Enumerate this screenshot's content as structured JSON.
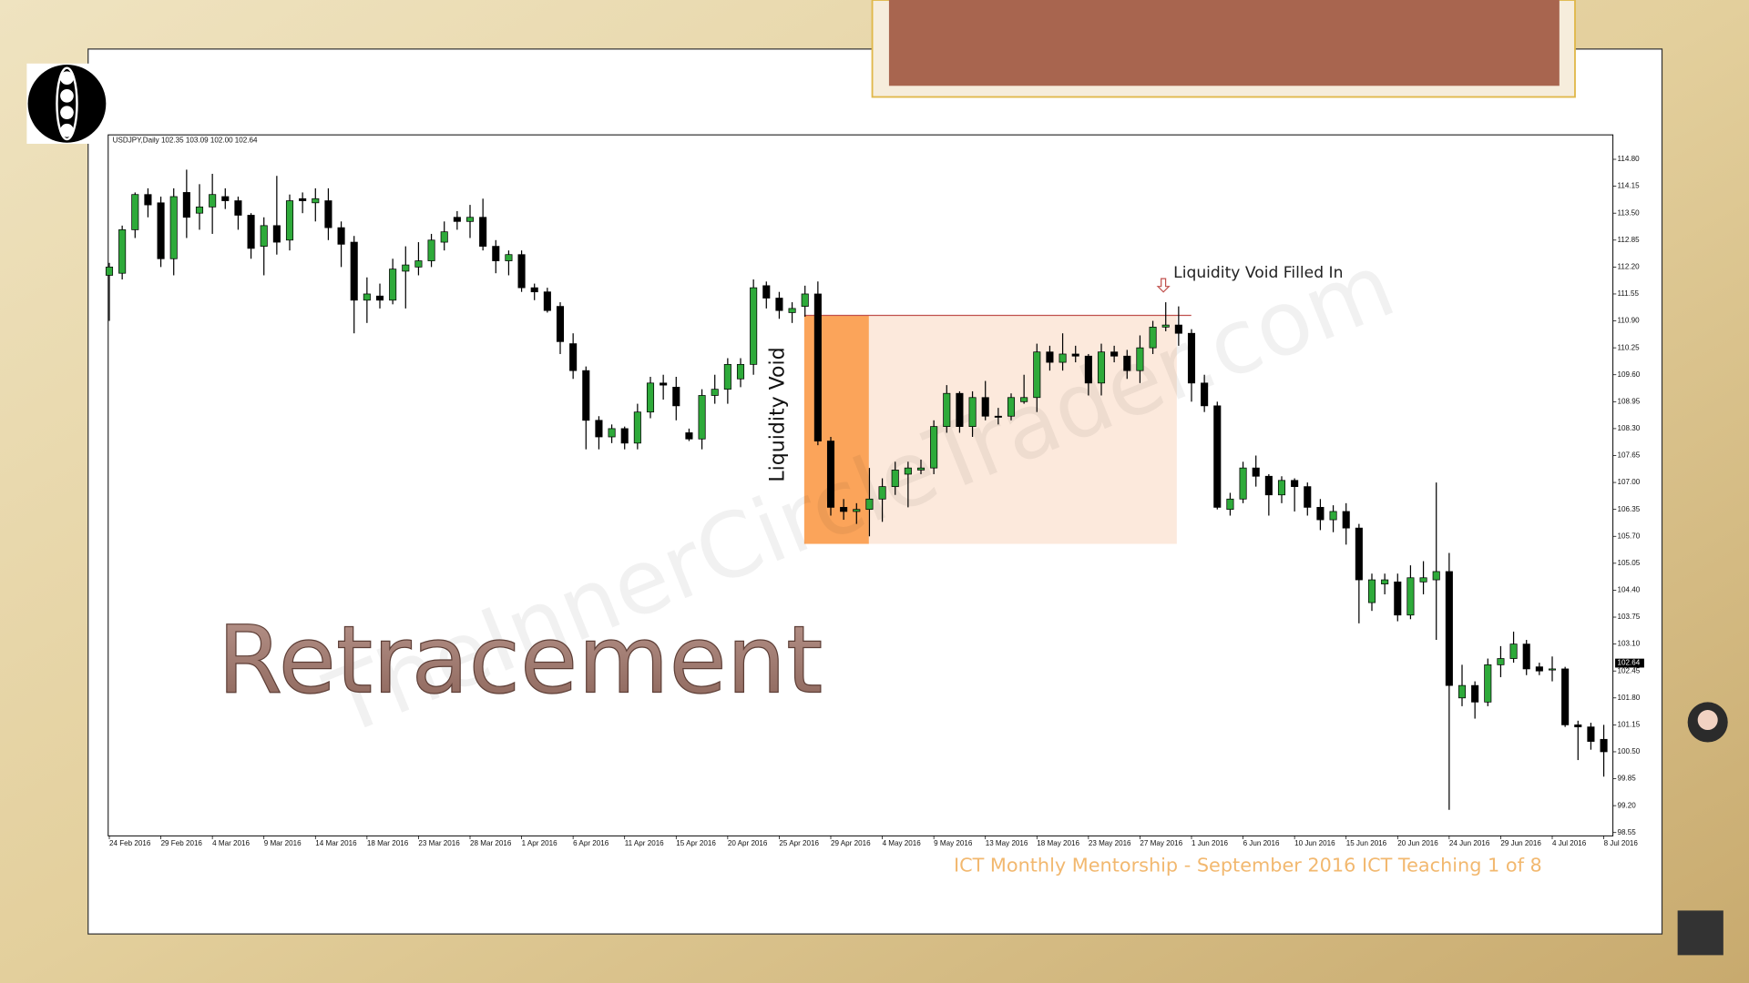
{
  "chart_data": {
    "type": "candlestick",
    "header": "USDJPY,Daily  102.35 103.09 102.00 102.64",
    "title": "Retracement",
    "annotations": [
      "Liquidity Void",
      "Liquidity Void Filled In"
    ],
    "watermark": "TheInnerCircleTrader.com",
    "footer": "ICT Monthly Mentorship - September 2016 ICT Teaching 1 of 8",
    "last_price": 102.64,
    "up_color": "#2eaa3a",
    "down_color": "#000000",
    "categories": [
      "24 Feb 2016",
      null,
      null,
      null,
      "29 Feb 2016",
      null,
      null,
      null,
      "4 Mar 2016",
      null,
      null,
      null,
      "9 Mar 2016",
      null,
      null,
      null,
      "14 Mar 2016",
      null,
      null,
      null,
      "18 Mar 2016",
      null,
      null,
      null,
      "23 Mar 2016",
      null,
      null,
      null,
      "28 Mar 2016",
      null,
      null,
      null,
      "1 Apr 2016",
      null,
      null,
      null,
      "6 Apr 2016",
      null,
      null,
      null,
      "11 Apr 2016",
      null,
      null,
      null,
      "15 Apr 2016",
      null,
      null,
      null,
      "20 Apr 2016",
      null,
      null,
      null,
      "25 Apr 2016",
      null,
      null,
      null,
      "29 Apr 2016",
      null,
      null,
      null,
      "4 May 2016",
      null,
      null,
      null,
      "9 May 2016",
      null,
      null,
      null,
      "13 May 2016",
      null,
      null,
      null,
      "18 May 2016",
      null,
      null,
      null,
      "23 May 2016",
      null,
      null,
      null,
      "27 May 2016",
      null,
      null,
      null,
      "1 Jun 2016",
      null,
      null,
      null,
      "6 Jun 2016",
      null,
      null,
      null,
      "10 Jun 2016",
      null,
      null,
      null,
      "15 Jun 2016",
      null,
      null,
      null,
      "20 Jun 2016",
      null,
      null,
      null,
      "24 Jun 2016",
      null,
      null,
      null,
      "29 Jun 2016",
      null,
      null,
      null,
      "4 Jul 2016",
      null,
      null,
      null,
      "8 Jul 2016"
    ],
    "open": [
      112.0,
      112.05,
      113.1,
      113.95,
      113.75,
      112.4,
      114.0,
      113.5,
      113.65,
      113.9,
      113.8,
      113.45,
      112.7,
      113.2,
      112.85,
      113.85,
      113.75,
      113.8,
      113.15,
      112.8,
      111.4,
      111.5,
      111.4,
      112.1,
      112.2,
      112.35,
      112.8,
      113.4,
      113.3,
      113.4,
      112.7,
      112.35,
      112.5,
      111.7,
      111.6,
      111.25,
      110.35,
      109.7,
      108.5,
      108.1,
      108.3,
      107.95,
      108.7,
      109.4,
      109.3,
      108.2,
      108.05,
      109.1,
      109.25,
      109.5,
      109.85,
      111.75,
      111.45,
      111.1,
      111.25,
      111.55,
      108.0,
      106.4,
      106.3,
      106.35,
      106.6,
      106.9,
      107.2,
      107.3,
      107.35,
      108.35,
      109.15,
      108.35,
      109.05,
      108.6,
      108.6,
      108.95,
      109.05,
      110.15,
      109.9,
      110.1,
      110.05,
      109.4,
      110.15,
      110.05,
      109.7,
      110.25,
      110.75,
      110.8,
      110.6,
      109.4,
      108.85,
      106.35,
      106.6,
      107.35,
      107.15,
      106.7,
      107.05,
      106.9,
      106.4,
      106.1,
      106.3,
      105.9,
      104.1,
      104.55,
      104.6,
      103.8,
      104.6,
      104.65,
      104.85,
      101.8,
      102.1,
      101.7,
      102.6,
      102.75,
      103.1,
      102.55,
      102.5,
      102.5,
      101.15,
      101.1,
      100.8
    ],
    "high": [
      112.3,
      113.2,
      114.0,
      114.1,
      113.9,
      114.1,
      114.55,
      114.2,
      114.45,
      114.1,
      113.9,
      113.5,
      113.4,
      114.4,
      113.95,
      114.0,
      114.1,
      114.1,
      113.3,
      112.95,
      111.95,
      111.8,
      112.4,
      112.7,
      112.8,
      113.0,
      113.3,
      113.55,
      113.7,
      113.85,
      112.85,
      112.6,
      112.6,
      111.8,
      111.7,
      111.35,
      110.6,
      109.8,
      108.6,
      108.4,
      108.35,
      108.9,
      109.55,
      109.6,
      109.55,
      108.3,
      109.25,
      109.6,
      110.0,
      110.0,
      111.9,
      111.85,
      111.6,
      111.35,
      111.75,
      111.85,
      108.1,
      106.6,
      106.5,
      107.35,
      107.1,
      107.5,
      107.5,
      107.55,
      108.5,
      109.35,
      109.2,
      109.2,
      109.45,
      108.8,
      109.15,
      109.6,
      110.35,
      110.3,
      110.6,
      110.3,
      110.1,
      110.35,
      110.3,
      110.2,
      110.55,
      110.9,
      111.35,
      111.25,
      110.7,
      109.6,
      108.95,
      106.75,
      107.5,
      107.65,
      107.2,
      107.15,
      107.1,
      107.0,
      106.6,
      106.45,
      106.5,
      106.0,
      104.8,
      104.8,
      104.8,
      105.0,
      105.1,
      107.0,
      105.3,
      102.6,
      102.2,
      102.75,
      103.05,
      103.4,
      103.2,
      102.65,
      102.8,
      102.55,
      101.25,
      101.2,
      101.15
    ],
    "low": [
      110.9,
      111.9,
      112.9,
      113.4,
      112.2,
      112.0,
      112.9,
      113.1,
      113.0,
      113.6,
      113.1,
      112.4,
      112.0,
      112.5,
      112.6,
      113.5,
      113.3,
      112.85,
      112.2,
      110.6,
      110.85,
      111.2,
      111.3,
      111.2,
      112.0,
      112.2,
      112.6,
      113.1,
      112.9,
      112.6,
      112.05,
      112.0,
      111.6,
      111.4,
      111.1,
      110.1,
      109.5,
      107.8,
      107.8,
      107.95,
      107.8,
      107.8,
      108.55,
      109.0,
      108.5,
      108.0,
      107.8,
      108.9,
      108.9,
      109.3,
      109.6,
      111.2,
      110.95,
      110.85,
      111.0,
      107.9,
      106.2,
      106.1,
      106.0,
      105.7,
      106.05,
      106.7,
      106.4,
      107.2,
      107.2,
      108.2,
      108.2,
      108.1,
      108.5,
      108.4,
      108.5,
      108.9,
      108.7,
      109.7,
      109.7,
      109.9,
      109.1,
      109.1,
      109.9,
      109.5,
      109.4,
      110.1,
      110.65,
      110.3,
      108.95,
      108.7,
      106.35,
      106.2,
      106.5,
      106.9,
      106.2,
      106.5,
      106.3,
      106.2,
      105.85,
      105.8,
      105.5,
      103.6,
      103.9,
      104.3,
      103.65,
      103.7,
      104.3,
      103.2,
      99.1,
      101.6,
      101.3,
      101.6,
      102.3,
      102.65,
      102.35,
      102.35,
      102.2,
      101.1,
      100.3,
      100.55,
      99.9
    ],
    "close": [
      112.2,
      113.1,
      113.95,
      113.7,
      112.4,
      113.9,
      113.4,
      113.65,
      113.95,
      113.8,
      113.45,
      112.65,
      113.2,
      112.8,
      113.8,
      113.8,
      113.85,
      113.15,
      112.75,
      111.4,
      111.55,
      111.4,
      112.15,
      112.25,
      112.35,
      112.85,
      113.05,
      113.3,
      113.4,
      112.7,
      112.35,
      112.5,
      111.7,
      111.6,
      111.15,
      110.4,
      109.7,
      108.5,
      108.1,
      108.3,
      107.95,
      108.7,
      109.4,
      109.35,
      108.85,
      108.05,
      109.1,
      109.25,
      109.85,
      109.85,
      111.7,
      111.45,
      111.15,
      111.2,
      111.55,
      108.0,
      106.4,
      106.3,
      106.35,
      106.6,
      106.9,
      107.3,
      107.35,
      107.35,
      108.35,
      109.15,
      108.35,
      109.05,
      108.6,
      108.58,
      109.05,
      109.05,
      110.15,
      109.9,
      110.1,
      110.05,
      109.4,
      110.15,
      110.05,
      109.7,
      110.25,
      110.75,
      110.8,
      110.6,
      109.4,
      108.85,
      106.4,
      106.6,
      107.35,
      107.15,
      106.7,
      107.05,
      106.9,
      106.4,
      106.1,
      106.3,
      105.9,
      104.65,
      104.65,
      104.65,
      103.8,
      104.7,
      104.7,
      104.85,
      102.1,
      102.1,
      101.7,
      102.6,
      102.75,
      103.1,
      102.5,
      102.45,
      102.5,
      101.15,
      101.1,
      100.75,
      100.5
    ],
    "ylim": [
      98.47,
      115.39
    ],
    "yticks": [
      {
        "value": 114.8,
        "label": "114.80"
      },
      114.15,
      {
        "value": 113.5,
        "label": "113.50"
      },
      112.85,
      {
        "value": 112.2,
        "label": "112.20"
      },
      111.55,
      {
        "value": 110.9,
        "label": "110.90"
      },
      110.25,
      {
        "value": 109.6,
        "label": "109.60"
      },
      108.95,
      {
        "value": 108.3,
        "label": "108.30"
      },
      107.65,
      {
        "value": 107.0,
        "label": "107.00"
      },
      106.35,
      {
        "value": 105.7,
        "label": "105.70"
      },
      105.05,
      {
        "value": 104.4,
        "label": "104.40"
      },
      103.75,
      {
        "value": 103.1,
        "label": "103.10"
      },
      102.45,
      {
        "value": 101.8,
        "label": "101.80"
      },
      101.15,
      {
        "value": 100.5,
        "label": "100.50"
      },
      99.85,
      {
        "value": 99.2,
        "label": "99.20"
      },
      98.55
    ]
  }
}
